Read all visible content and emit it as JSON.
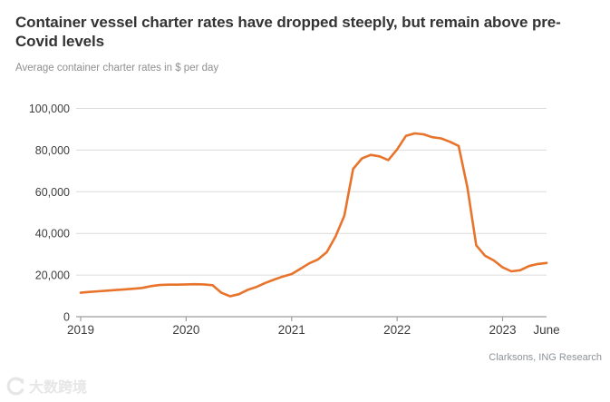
{
  "header": {
    "title": "Container vessel charter rates have dropped steeply, but remain above pre-Covid levels",
    "subtitle": "Average container charter rates in $ per day"
  },
  "source": "Clarksons, ING Research",
  "watermark": {
    "text": "大数跨境",
    "logo": "watermark-logo"
  },
  "colors": {
    "line": "#e8742c",
    "grid": "#dcdcdc",
    "axis": "#9e9e9e",
    "title_text": "#333333",
    "subtitle_text": "#8f8f8f",
    "tick_text": "#3d3d3d",
    "source_text": "#8c9298",
    "watermark_text": "#e6e6e6"
  },
  "chart_data": {
    "type": "line",
    "title": "Container vessel charter rates have dropped steeply, but remain above pre-Covid levels",
    "subtitle": "Average container charter rates in $ per day",
    "xlabel": "",
    "ylabel": "$ per day",
    "ylim": [
      0,
      100000
    ],
    "grid": true,
    "legend": false,
    "yticks": [
      0,
      20000,
      40000,
      60000,
      80000,
      100000
    ],
    "ytick_labels": [
      "0",
      "20,000",
      "40,000",
      "60,000",
      "80,000",
      "100,000"
    ],
    "xtick_positions": [
      2019,
      2020,
      2021,
      2022,
      2023,
      2023.4167
    ],
    "xtick_labels": [
      "2019",
      "2020",
      "2021",
      "2022",
      "2023",
      "June"
    ],
    "series": [
      {
        "name": "Average container charter rate",
        "x": [
          2019.0,
          2019.0833,
          2019.1667,
          2019.25,
          2019.3333,
          2019.4167,
          2019.5,
          2019.5833,
          2019.6667,
          2019.75,
          2019.8333,
          2019.9167,
          2020.0,
          2020.0833,
          2020.1667,
          2020.25,
          2020.3333,
          2020.4167,
          2020.5,
          2020.5833,
          2020.6667,
          2020.75,
          2020.8333,
          2020.9167,
          2021.0,
          2021.0833,
          2021.1667,
          2021.25,
          2021.3333,
          2021.4167,
          2021.5,
          2021.5833,
          2021.6667,
          2021.75,
          2021.8333,
          2021.9167,
          2022.0,
          2022.0833,
          2022.1667,
          2022.25,
          2022.3333,
          2022.4167,
          2022.5,
          2022.5833,
          2022.6667,
          2022.75,
          2022.8333,
          2022.9167,
          2023.0,
          2023.0833,
          2023.1667,
          2023.25,
          2023.3333,
          2023.4167
        ],
        "values": [
          11500,
          11900,
          12200,
          12500,
          12800,
          13100,
          13400,
          13800,
          14700,
          15200,
          15400,
          15400,
          15500,
          15600,
          15500,
          15100,
          11500,
          9800,
          10800,
          12900,
          14300,
          16200,
          17800,
          19300,
          20500,
          23000,
          25600,
          27500,
          31000,
          38500,
          48500,
          71000,
          76000,
          77700,
          77000,
          75200,
          80300,
          86800,
          88000,
          87600,
          86200,
          85600,
          84000,
          82000,
          62000,
          34300,
          29300,
          27000,
          23700,
          21800,
          22300,
          24300,
          25300,
          25800
        ]
      }
    ]
  }
}
